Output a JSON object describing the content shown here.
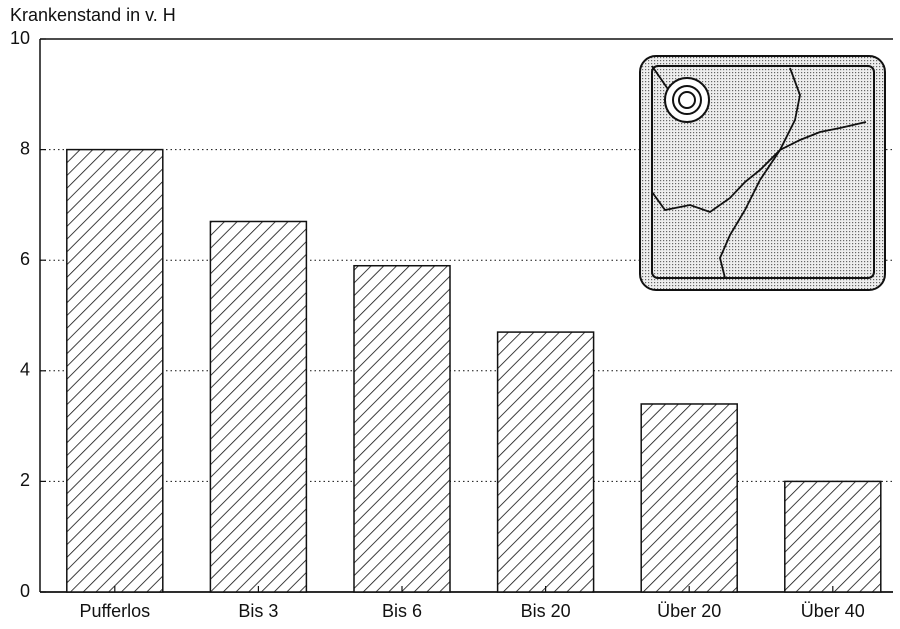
{
  "chart_data": {
    "type": "bar",
    "y_label": "Krankenstand in v. H",
    "categories": [
      "Pufferlos",
      "Bis 3",
      "Bis 6",
      "Bis 20",
      "Über 20",
      "Über 40"
    ],
    "values": [
      8,
      6.7,
      5.9,
      4.7,
      3.4,
      2.0
    ],
    "color": "#000000",
    "ylim": [
      0,
      10
    ],
    "yticks": [
      0,
      2,
      4,
      6,
      8,
      10
    ],
    "grid": true
  }
}
